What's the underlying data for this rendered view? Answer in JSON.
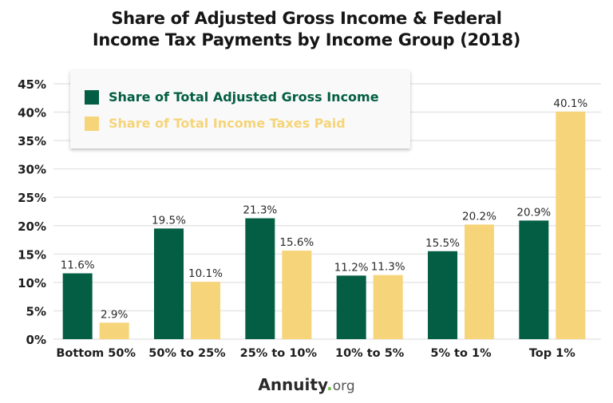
{
  "chart_data": {
    "type": "bar",
    "title": "Share of Adjusted Gross Income & Federal Income Tax Payments by Income Group (2018)",
    "title_lines": [
      "Share of Adjusted Gross Income & Federal",
      "Income Tax Payments by Income Group (2018)"
    ],
    "categories": [
      "Bottom 50%",
      "50% to 25%",
      "25% to 10%",
      "10% to 5%",
      "5% to 1%",
      "Top 1%"
    ],
    "series": [
      {
        "name": "Share of Total Adjusted Gross Income",
        "color": "#035e43",
        "values": [
          11.6,
          19.5,
          21.3,
          11.2,
          15.5,
          20.9
        ],
        "labels": [
          "11.6%",
          "19.5%",
          "21.3%",
          "11.2%",
          "15.5%",
          "20.9%"
        ]
      },
      {
        "name": "Share of Total Income Taxes Paid",
        "color": "#f6d479",
        "values": [
          2.9,
          10.1,
          15.6,
          11.3,
          20.2,
          40.1
        ],
        "labels": [
          "2.9%",
          "10.1%",
          "15.6%",
          "11.3%",
          "20.2%",
          "40.1%"
        ]
      }
    ],
    "ylim": [
      0,
      45
    ],
    "yticks": [
      0,
      5,
      10,
      15,
      20,
      25,
      30,
      35,
      40,
      45
    ],
    "ytick_labels": [
      "0%",
      "5%",
      "10%",
      "15%",
      "20%",
      "25%",
      "30%",
      "35%",
      "40%",
      "45%"
    ],
    "xlabel": "",
    "ylabel": "",
    "grid": true,
    "legend_position": "top-left"
  },
  "branding": {
    "name": "Annuity",
    "dot": ".",
    "suffix": "org"
  }
}
